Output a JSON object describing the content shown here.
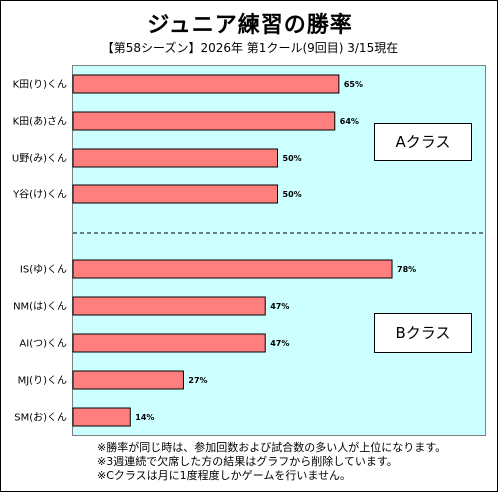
{
  "title": "ジュニア練習の勝率",
  "subtitle": "【第58シーズン】2026年 第1クール(9回目) 3/15現在",
  "chart_data": {
    "type": "bar",
    "orientation": "horizontal",
    "categories": [
      "K田(り)くん",
      "K田(あ)さん",
      "U野(み)くん",
      "Y谷(け)くん",
      "IS(ゆ)くん",
      "NM(は)くん",
      "AI(つ)くん",
      "MJ(り)くん",
      "SM(お)くん"
    ],
    "values": [
      65,
      64,
      50,
      50,
      78,
      47,
      47,
      27,
      14
    ],
    "value_labels": [
      "65%",
      "64%",
      "50%",
      "50%",
      "78%",
      "47%",
      "47%",
      "27%",
      "14%"
    ],
    "xlim": [
      0,
      100
    ],
    "groups": [
      {
        "label": "Aクラス",
        "members": [
          0,
          1,
          2,
          3
        ]
      },
      {
        "label": "Bクラス",
        "members": [
          4,
          5,
          6,
          7,
          8
        ]
      }
    ],
    "bar_color": "#ff7f7f",
    "background_color": "#ccffff",
    "grid": false
  },
  "notes": [
    "※勝率が同じ時は、参加回数および試合数の多い人が上位になります。",
    "※3週連続で欠席した方の結果はグラフから削除しています。",
    "※Cクラスは月に1度程度しかゲームを行いません。"
  ]
}
